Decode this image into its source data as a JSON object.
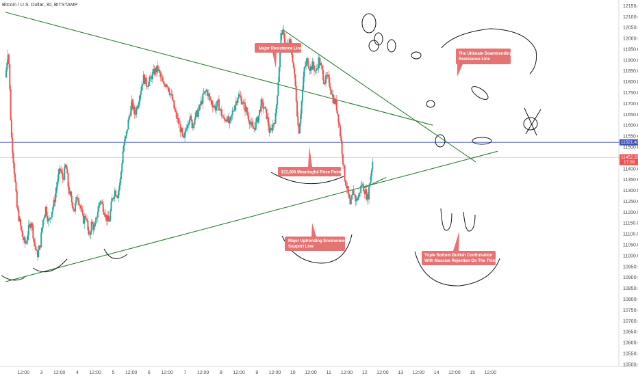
{
  "header": {
    "symbol_title": "Bitcoin / U.S. Dollar, 30, BITSTAMP"
  },
  "colors": {
    "up": "#26a69a",
    "down": "#ef5350",
    "trend": "#2e7d32",
    "hline_blue": "#3f51b5",
    "hline_red": "#ef9a9a",
    "callout": "#e57373",
    "tag_blue": "#3f51b5",
    "tag_red": "#ef5350"
  },
  "chart_data": {
    "type": "candlestick",
    "symbol": "Bitcoin / U.S. Dollar, 30, BITSTAMP",
    "ylim": [
      10490,
      12170
    ],
    "xlim": [
      0,
      8.5
    ],
    "yticks": [
      12150,
      12100,
      12050,
      12000,
      11950,
      11900,
      11850,
      11800,
      11750,
      11700,
      11650,
      11600,
      11550,
      11500,
      11450,
      11400,
      11350,
      11300,
      11250,
      11200,
      11150,
      11100,
      11050,
      11000,
      10950,
      10900,
      10850,
      10800,
      10750,
      10700,
      10650,
      10600,
      10550,
      10500
    ],
    "xticks": [
      {
        "x": 0.25,
        "label": "12:00"
      },
      {
        "x": 0.5,
        "label": "3"
      },
      {
        "x": 0.75,
        "label": "12:00"
      },
      {
        "x": 1.0,
        "label": "4"
      },
      {
        "x": 1.25,
        "label": "12:00"
      },
      {
        "x": 1.5,
        "label": "5"
      },
      {
        "x": 1.75,
        "label": "12:00"
      },
      {
        "x": 2.0,
        "label": "6"
      },
      {
        "x": 2.25,
        "label": "12:00"
      },
      {
        "x": 2.5,
        "label": "7"
      },
      {
        "x": 2.75,
        "label": "12:00"
      },
      {
        "x": 3.0,
        "label": "8"
      },
      {
        "x": 3.25,
        "label": "12:00"
      },
      {
        "x": 3.5,
        "label": "9"
      },
      {
        "x": 3.75,
        "label": "12:00"
      },
      {
        "x": 4.0,
        "label": "10"
      },
      {
        "x": 4.25,
        "label": "12:00"
      },
      {
        "x": 4.5,
        "label": "11"
      },
      {
        "x": 4.75,
        "label": "12:00"
      },
      {
        "x": 5.0,
        "label": "12"
      },
      {
        "x": 5.25,
        "label": "12:00"
      },
      {
        "x": 5.5,
        "label": "13"
      },
      {
        "x": 5.75,
        "label": "12:00"
      },
      {
        "x": 6.0,
        "label": "14"
      },
      {
        "x": 6.25,
        "label": "12:00"
      },
      {
        "x": 6.5,
        "label": "15"
      },
      {
        "x": 6.75,
        "label": "12:00"
      }
    ],
    "price_path": [
      [
        0.0,
        11820
      ],
      [
        0.04,
        11960
      ],
      [
        0.08,
        11560
      ],
      [
        0.12,
        11400
      ],
      [
        0.16,
        11220
      ],
      [
        0.2,
        11150
      ],
      [
        0.24,
        11080
      ],
      [
        0.28,
        11050
      ],
      [
        0.32,
        11120
      ],
      [
        0.36,
        11160
      ],
      [
        0.4,
        11060
      ],
      [
        0.44,
        11000
      ],
      [
        0.48,
        11040
      ],
      [
        0.52,
        11160
      ],
      [
        0.56,
        11220
      ],
      [
        0.6,
        11150
      ],
      [
        0.64,
        11200
      ],
      [
        0.68,
        11250
      ],
      [
        0.72,
        11340
      ],
      [
        0.76,
        11400
      ],
      [
        0.8,
        11350
      ],
      [
        0.84,
        11420
      ],
      [
        0.88,
        11300
      ],
      [
        0.92,
        11250
      ],
      [
        0.96,
        11210
      ],
      [
        1.0,
        11280
      ],
      [
        1.04,
        11230
      ],
      [
        1.08,
        11160
      ],
      [
        1.12,
        11190
      ],
      [
        1.16,
        11080
      ],
      [
        1.2,
        11150
      ],
      [
        1.24,
        11120
      ],
      [
        1.28,
        11200
      ],
      [
        1.32,
        11260
      ],
      [
        1.36,
        11220
      ],
      [
        1.4,
        11180
      ],
      [
        1.44,
        11150
      ],
      [
        1.48,
        11250
      ],
      [
        1.52,
        11300
      ],
      [
        1.56,
        11280
      ],
      [
        1.6,
        11350
      ],
      [
        1.64,
        11500
      ],
      [
        1.68,
        11550
      ],
      [
        1.72,
        11640
      ],
      [
        1.76,
        11700
      ],
      [
        1.8,
        11650
      ],
      [
        1.84,
        11700
      ],
      [
        1.88,
        11760
      ],
      [
        1.92,
        11820
      ],
      [
        1.96,
        11790
      ],
      [
        2.0,
        11800
      ],
      [
        2.04,
        11830
      ],
      [
        2.08,
        11850
      ],
      [
        2.12,
        11860
      ],
      [
        2.16,
        11820
      ],
      [
        2.2,
        11780
      ],
      [
        2.24,
        11800
      ],
      [
        2.28,
        11760
      ],
      [
        2.32,
        11720
      ],
      [
        2.36,
        11660
      ],
      [
        2.4,
        11620
      ],
      [
        2.44,
        11580
      ],
      [
        2.48,
        11520
      ],
      [
        2.52,
        11600
      ],
      [
        2.56,
        11640
      ],
      [
        2.6,
        11600
      ],
      [
        2.64,
        11640
      ],
      [
        2.68,
        11660
      ],
      [
        2.72,
        11700
      ],
      [
        2.76,
        11740
      ],
      [
        2.8,
        11760
      ],
      [
        2.84,
        11720
      ],
      [
        2.88,
        11700
      ],
      [
        2.92,
        11680
      ],
      [
        2.96,
        11700
      ],
      [
        3.0,
        11660
      ],
      [
        3.04,
        11620
      ],
      [
        3.08,
        11640
      ],
      [
        3.12,
        11600
      ],
      [
        3.16,
        11660
      ],
      [
        3.2,
        11700
      ],
      [
        3.24,
        11740
      ],
      [
        3.28,
        11720
      ],
      [
        3.32,
        11690
      ],
      [
        3.36,
        11660
      ],
      [
        3.4,
        11620
      ],
      [
        3.44,
        11580
      ],
      [
        3.48,
        11600
      ],
      [
        3.52,
        11640
      ],
      [
        3.56,
        11700
      ],
      [
        3.6,
        11680
      ],
      [
        3.64,
        11640
      ],
      [
        3.68,
        11560
      ],
      [
        3.72,
        11600
      ],
      [
        3.76,
        11640
      ],
      [
        3.8,
        11820
      ],
      [
        3.84,
        12040
      ],
      [
        3.88,
        12000
      ],
      [
        3.92,
        11960
      ],
      [
        3.96,
        11980
      ],
      [
        4.0,
        11900
      ],
      [
        4.04,
        11760
      ],
      [
        4.08,
        11560
      ],
      [
        4.12,
        11700
      ],
      [
        4.16,
        11860
      ],
      [
        4.2,
        11900
      ],
      [
        4.24,
        11860
      ],
      [
        4.28,
        11880
      ],
      [
        4.32,
        11840
      ],
      [
        4.36,
        11900
      ],
      [
        4.4,
        11860
      ],
      [
        4.44,
        11800
      ],
      [
        4.48,
        11820
      ],
      [
        4.52,
        11780
      ],
      [
        4.56,
        11720
      ],
      [
        4.6,
        11700
      ],
      [
        4.64,
        11620
      ],
      [
        4.68,
        11500
      ],
      [
        4.72,
        11360
      ],
      [
        4.76,
        11300
      ],
      [
        4.8,
        11220
      ],
      [
        4.84,
        11300
      ],
      [
        4.88,
        11250
      ],
      [
        4.92,
        11280
      ],
      [
        4.96,
        11330
      ],
      [
        5.0,
        11300
      ],
      [
        5.04,
        11260
      ],
      [
        5.08,
        11360
      ],
      [
        5.12,
        11460
      ]
    ],
    "horizontal_lines": [
      {
        "price": 11521.43,
        "label": "11521.43",
        "color": "#3f51b5"
      },
      {
        "price": 11452.29,
        "label": "11452.29",
        "sub_label": "17:09",
        "color": "#ef5350"
      }
    ],
    "trendlines": [
      {
        "name": "major-resistance",
        "from": [
          0.0,
          12120
        ],
        "to": [
          5.95,
          11600
        ]
      },
      {
        "name": "ultimate-downtrend",
        "from": [
          3.86,
          12040
        ],
        "to": [
          6.55,
          11430
        ]
      },
      {
        "name": "uptrend-support",
        "from": [
          0.0,
          10880
        ],
        "to": [
          6.85,
          11480
        ]
      },
      {
        "name": "short-trend",
        "from": [
          4.98,
          11310
        ],
        "to": [
          5.3,
          11360
        ]
      }
    ],
    "annotations": [
      {
        "text": [
          "Major Resistance Line"
        ]
      },
      {
        "text": [
          "The Ultimate Downtrending",
          "Resistance Line"
        ]
      },
      {
        "text": [
          "$11,500 Meaningful Price Point"
        ]
      },
      {
        "text": [
          "Major Uptrending Environment",
          "Support Line"
        ]
      },
      {
        "text": [
          "Triple Bottom Bullish Confirmation",
          "With Massive Rejection On The Third"
        ]
      }
    ]
  }
}
